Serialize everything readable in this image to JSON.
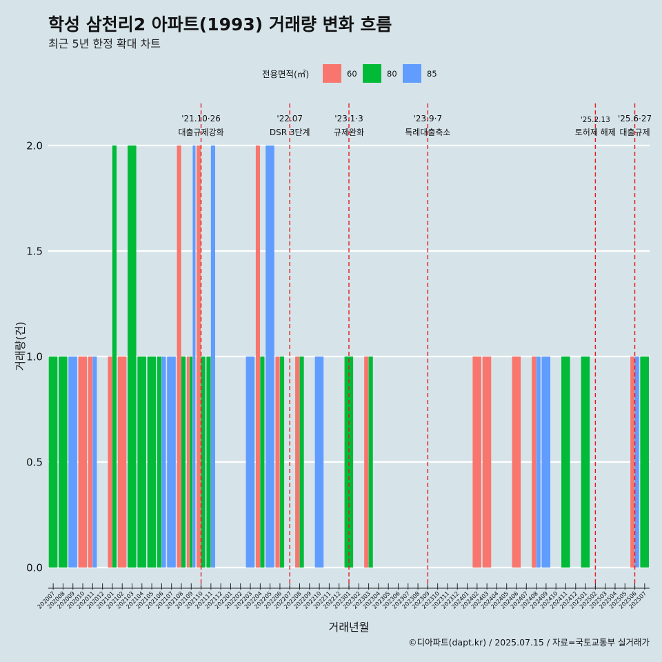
{
  "chart_data": {
    "type": "bar",
    "title": "학성 삼천리2 아파트(1993) 거래량 변화 흐름",
    "subtitle": "최근 5년 한정 확대 차트",
    "xlabel": "거래년월",
    "ylabel": "거래량(건)",
    "legend_title": "전용면적(㎡)",
    "legend_position": "top",
    "caption": "©디아파트(dapt.kr) / 2025.07.15 / 자료=국토교통부 실거래가",
    "ylim": [
      0,
      2
    ],
    "yticks": [
      0.0,
      0.5,
      1.0,
      1.5,
      2.0
    ],
    "ytick_labels": [
      "0.0",
      "0.5",
      "1.0",
      "1.5",
      "2.0"
    ],
    "grid": true,
    "categories": [
      "202007",
      "202008",
      "202009",
      "202010",
      "202011",
      "202012",
      "202101",
      "202102",
      "202103",
      "202104",
      "202105",
      "202106",
      "202107",
      "202108",
      "202109",
      "202110",
      "202111",
      "202112",
      "202201",
      "202202",
      "202203",
      "202204",
      "202205",
      "202206",
      "202207",
      "202208",
      "202209",
      "202210",
      "202211",
      "202212",
      "202301",
      "202302",
      "202303",
      "202304",
      "202305",
      "202306",
      "202307",
      "202308",
      "202309",
      "202310",
      "202311",
      "202312",
      "202401",
      "202402",
      "202403",
      "202404",
      "202405",
      "202406",
      "202407",
      "202408",
      "202409",
      "202410",
      "202411",
      "202412",
      "202501",
      "202502",
      "202503",
      "202504",
      "202505",
      "202506",
      "202507"
    ],
    "series": [
      {
        "name": "60",
        "color": "#f8766d",
        "values": [
          0,
          0,
          0,
          1,
          1,
          0,
          1,
          1,
          0,
          0,
          0,
          0,
          0,
          2,
          1,
          2,
          0,
          0,
          0,
          0,
          0,
          2,
          0,
          1,
          0,
          1,
          0,
          0,
          0,
          0,
          0,
          0,
          1,
          0,
          0,
          0,
          0,
          0,
          0,
          0,
          0,
          0,
          0,
          1,
          1,
          0,
          0,
          1,
          0,
          1,
          0,
          0,
          0,
          0,
          0,
          0,
          0,
          0,
          0,
          1,
          0
        ]
      },
      {
        "name": "80",
        "color": "#00ba38",
        "values": [
          1,
          1,
          0,
          0,
          0,
          0,
          2,
          0,
          2,
          1,
          1,
          1,
          0,
          1,
          1,
          1,
          1,
          0,
          0,
          0,
          0,
          1,
          0,
          1,
          0,
          1,
          0,
          0,
          0,
          0,
          1,
          0,
          1,
          0,
          0,
          0,
          0,
          0,
          0,
          0,
          0,
          0,
          0,
          0,
          0,
          0,
          0,
          0,
          0,
          0,
          0,
          0,
          1,
          0,
          1,
          0,
          0,
          0,
          0,
          0,
          1
        ]
      },
      {
        "name": "85",
        "color": "#619cff",
        "values": [
          0,
          0,
          1,
          0,
          1,
          0,
          0,
          0,
          0,
          0,
          0,
          1,
          1,
          0,
          2,
          0,
          2,
          0,
          0,
          0,
          1,
          0,
          2,
          0,
          0,
          0,
          0,
          1,
          0,
          0,
          0,
          0,
          0,
          0,
          0,
          0,
          0,
          0,
          0,
          0,
          0,
          0,
          0,
          0,
          0,
          0,
          0,
          0,
          0,
          1,
          1,
          0,
          0,
          0,
          0,
          0,
          0,
          0,
          0,
          1,
          0
        ]
      }
    ],
    "annotations": [
      {
        "date": "202110",
        "line1": "'21.10·26",
        "line2": "대출규제강화"
      },
      {
        "date": "202207",
        "line1": "'22.07",
        "line2": "DSR 3단계"
      },
      {
        "date": "202301",
        "line1": "'23.1·3",
        "line2": "규제완화"
      },
      {
        "date": "202309",
        "line1": "'23.9·7",
        "line2": "특례대출축소"
      },
      {
        "date": "202502",
        "line1": "'25.2.13",
        "line2": "토허제 해제"
      },
      {
        "date": "202506",
        "line1": "'25.6·27",
        "line2": "대출규제"
      }
    ]
  }
}
